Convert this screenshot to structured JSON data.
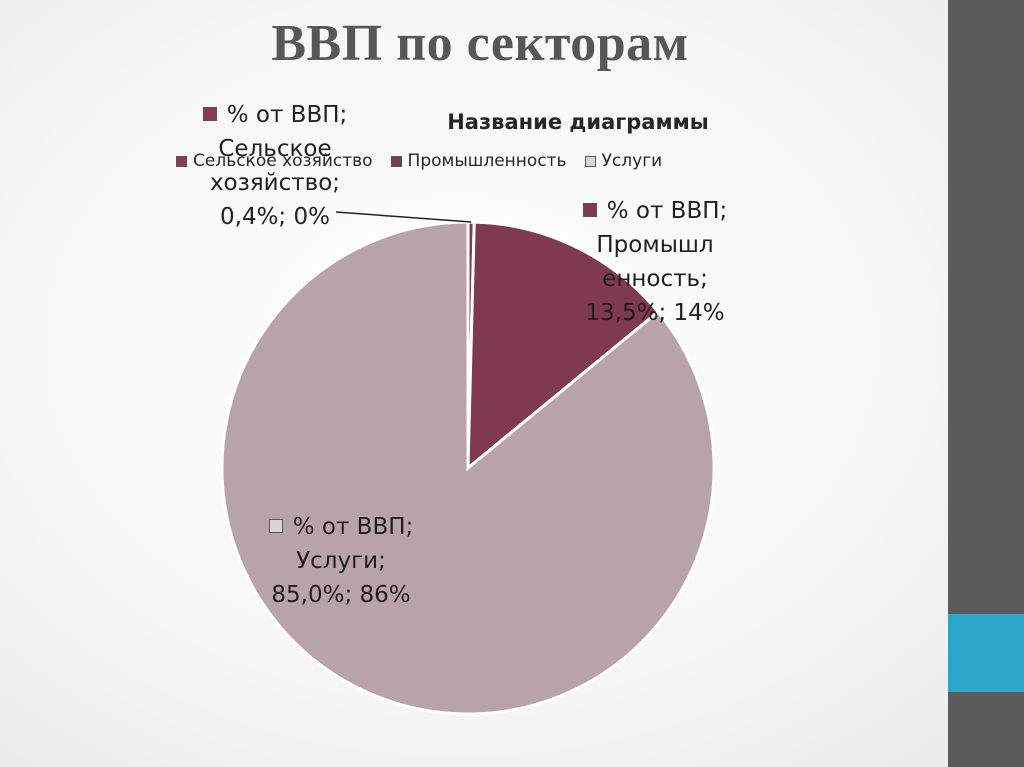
{
  "slide": {
    "title": "ВВП по секторам",
    "sidebar_color": "#5b5b5b",
    "accent_color": "#2ba6c9"
  },
  "chart_data": {
    "type": "pie",
    "title": "Название диаграммы",
    "series_name": "% от ВВП",
    "legend_position": "top",
    "slices": [
      {
        "category": "Сельское хозяйство",
        "value": 0.4,
        "color": "#8b3a52",
        "label_lines": [
          "% от ВВП;",
          "Сельское",
          "хозяйство;",
          "0,4%; 0%"
        ]
      },
      {
        "category": "Промышленность",
        "value": 13.5,
        "color": "#7f3a4f",
        "label_lines": [
          "% от ВВП;",
          "Промышл",
          "енность;",
          "13,5%; 14%"
        ]
      },
      {
        "category": "Услуги",
        "value": 85.0,
        "color": "#b8a4a8",
        "label_lines": [
          "% от ВВП;",
          "Услуги;",
          "85,0%; 86%"
        ]
      }
    ],
    "legend": [
      {
        "label": "Сельское хозяйство",
        "color": "#8b3a52"
      },
      {
        "label": "Промышленность",
        "color": "#7f3a4f"
      },
      {
        "label": "Услуги",
        "color": "#ddd2d4"
      }
    ]
  }
}
